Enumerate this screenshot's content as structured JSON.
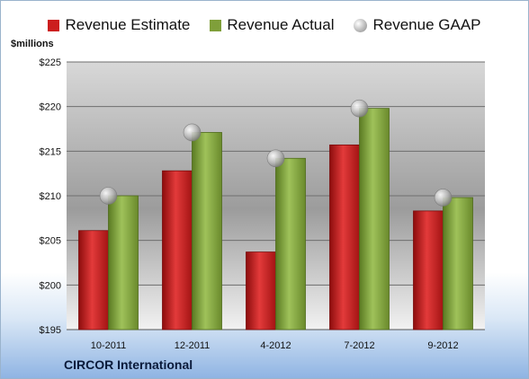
{
  "chart_data": {
    "type": "bar",
    "unit_label": "$millions",
    "categories": [
      "10-2011",
      "12-2011",
      "4-2012",
      "7-2012",
      "9-2012"
    ],
    "series": [
      {
        "name": "Revenue Estimate",
        "kind": "bar",
        "color": "#cc1e1e",
        "values": [
          206.1,
          212.8,
          203.7,
          215.7,
          208.3
        ]
      },
      {
        "name": "Revenue Actual",
        "kind": "bar",
        "color": "#86a83f",
        "values": [
          210.0,
          217.1,
          214.2,
          219.8,
          209.8
        ]
      },
      {
        "name": "Revenue GAAP",
        "kind": "point",
        "color": "#bdbdbd",
        "values": [
          210.0,
          217.1,
          214.2,
          219.8,
          209.8
        ]
      }
    ],
    "yticks": [
      "$195",
      "$200",
      "$205",
      "$210",
      "$215",
      "$220",
      "$225"
    ],
    "ylim": [
      195,
      225
    ],
    "grid": true,
    "legend_position": "top"
  },
  "footer": {
    "company": "CIRCOR International"
  }
}
